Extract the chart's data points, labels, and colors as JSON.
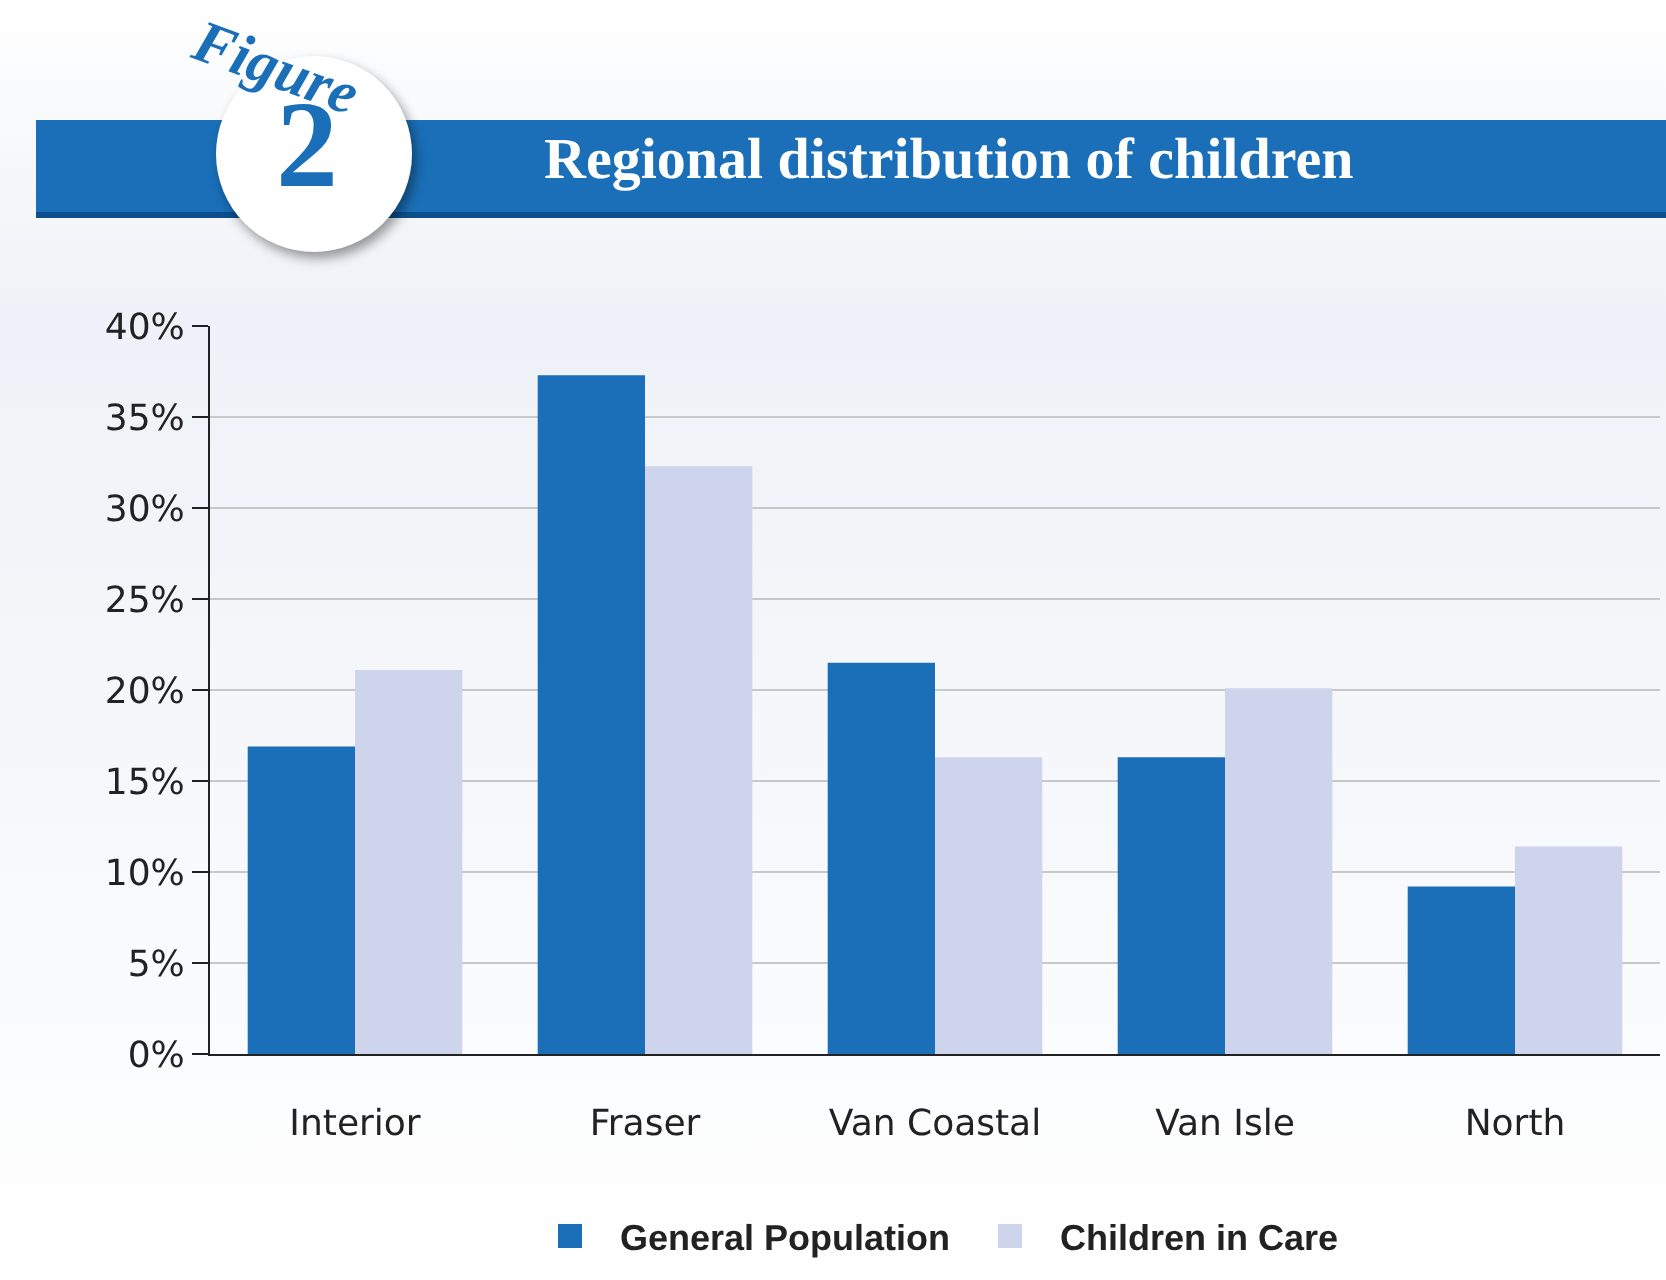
{
  "chart_data": {
    "type": "bar",
    "title": "Regional distribution of children",
    "annotations": [
      "Figure",
      "2"
    ],
    "categories": [
      "Interior",
      "Fraser",
      "Van Coastal",
      "Van Isle",
      "North"
    ],
    "series": [
      {
        "name": "General Population",
        "color": "#1a6fb8",
        "values": [
          16.9,
          37.3,
          21.5,
          16.3,
          9.2
        ]
      },
      {
        "name": "Children in Care",
        "color": "#cdd4ec",
        "values": [
          21.1,
          32.3,
          16.3,
          20.1,
          11.4
        ]
      }
    ],
    "ylim": [
      0,
      40
    ],
    "yticks": [
      {
        "value": 0,
        "label": "0%"
      },
      {
        "value": 5,
        "label": "5%"
      },
      {
        "value": 10,
        "label": "10%"
      },
      {
        "value": 15,
        "label": "15%"
      },
      {
        "value": 20,
        "label": "20%"
      },
      {
        "value": 25,
        "label": "25%"
      },
      {
        "value": 30,
        "label": "30%"
      },
      {
        "value": 35,
        "label": "35%"
      },
      {
        "value": 40,
        "label": "40%"
      }
    ],
    "grid": "y",
    "legend": "bottom"
  }
}
